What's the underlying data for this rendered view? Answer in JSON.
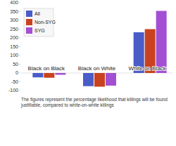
{
  "chart_data": {
    "type": "bar",
    "categories": [
      "Black on Black",
      "Black on White",
      "White on Black"
    ],
    "series": [
      {
        "name": "All",
        "color": "#4a5cc8",
        "values": [
          -25,
          -75,
          232
        ]
      },
      {
        "name": "Non-SYG",
        "color": "#c9421f",
        "values": [
          -27,
          -78,
          250
        ]
      },
      {
        "name": "SYG",
        "color": "#a34fd3",
        "values": [
          -10,
          -72,
          354
        ]
      }
    ],
    "ylim": [
      -100,
      400
    ],
    "yticks": [
      -100,
      -50,
      0,
      50,
      100,
      150,
      200,
      250,
      300,
      350,
      400
    ],
    "grid": false,
    "legend": "top-left",
    "annotations": [
      "The figures represent the percentage likelihood that killings will be found justifiable, compared to white-on-white killings"
    ]
  }
}
